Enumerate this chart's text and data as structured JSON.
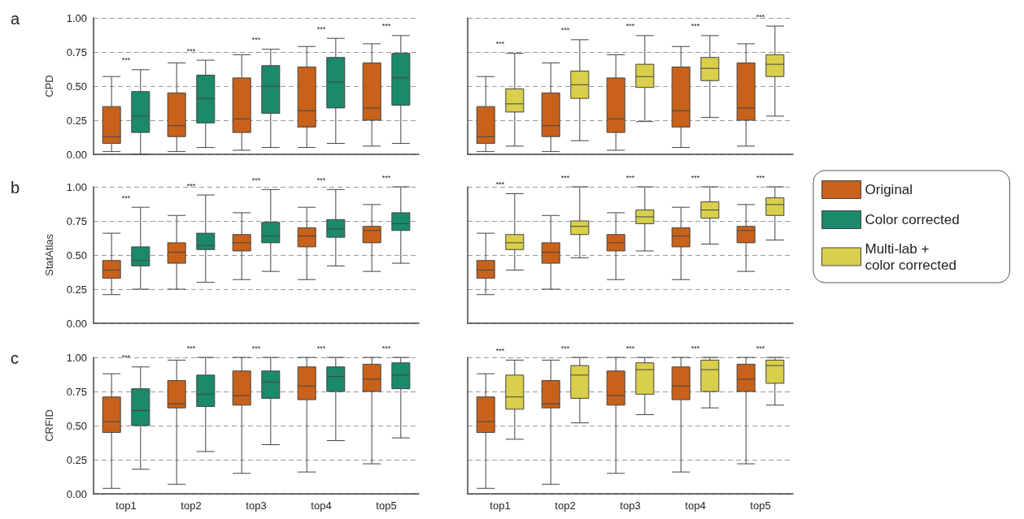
{
  "chart_data": [
    {
      "type": "box",
      "title": "a",
      "ylabel": "CPD",
      "categories": [
        "top1",
        "top2",
        "top3",
        "top4",
        "top5"
      ],
      "ylim": [
        0,
        1
      ],
      "yticks": [
        {
          "value": 0,
          "label": "0.00"
        },
        {
          "value": 0.25,
          "label": "0.25"
        },
        {
          "value": 0.5,
          "label": "0.50"
        },
        {
          "value": 0.75,
          "label": "0.75"
        },
        {
          "value": 1,
          "label": "1.00"
        }
      ],
      "grid": "y",
      "legend": "right",
      "tick_labels": "y",
      "series": [
        {
          "name": "Original",
          "color": "#c8621a",
          "boxes": [
            {
              "low": 0.02,
              "q1": 0.08,
              "median": 0.13,
              "q3": 0.35,
              "high": 0.57
            },
            {
              "low": 0.02,
              "q1": 0.13,
              "median": 0.21,
              "q3": 0.45,
              "high": 0.67
            },
            {
              "low": 0.03,
              "q1": 0.16,
              "median": 0.26,
              "q3": 0.56,
              "high": 0.73
            },
            {
              "low": 0.05,
              "q1": 0.2,
              "median": 0.32,
              "q3": 0.64,
              "high": 0.79
            },
            {
              "low": 0.06,
              "q1": 0.25,
              "median": 0.34,
              "q3": 0.67,
              "high": 0.81
            }
          ]
        },
        {
          "name": "Color corrected",
          "color": "#1a8a6a",
          "boxes": [
            {
              "low": 0,
              "q1": 0.16,
              "median": 0.28,
              "q3": 0.46,
              "high": 0.62
            },
            {
              "low": 0.05,
              "q1": 0.23,
              "median": 0.41,
              "q3": 0.58,
              "high": 0.69
            },
            {
              "low": 0.05,
              "q1": 0.3,
              "median": 0.5,
              "q3": 0.65,
              "high": 0.77
            },
            {
              "low": 0.08,
              "q1": 0.34,
              "median": 0.53,
              "q3": 0.71,
              "high": 0.85
            },
            {
              "low": 0.08,
              "q1": 0.36,
              "median": 0.56,
              "q3": 0.74,
              "high": 0.87
            }
          ]
        }
      ],
      "annotations": [
        "***",
        "***",
        "***",
        "***",
        "***"
      ]
    },
    {
      "type": "box",
      "categories": [
        "top1",
        "top2",
        "top3",
        "top4",
        "top5"
      ],
      "ylim": [
        0,
        1
      ],
      "yticks": [
        {
          "value": 0,
          "label": "0.00"
        },
        {
          "value": 0.25,
          "label": "0.25"
        },
        {
          "value": 0.5,
          "label": "0.50"
        },
        {
          "value": 0.75,
          "label": "0.75"
        },
        {
          "value": 1,
          "label": "1.00"
        }
      ],
      "grid": "y",
      "legend": "right",
      "tick_labels": false,
      "series": [
        {
          "color": "#c8621a",
          "boxes": [
            {
              "low": 0.02,
              "q1": 0.08,
              "median": 0.13,
              "q3": 0.35,
              "high": 0.57
            },
            {
              "low": 0.02,
              "q1": 0.13,
              "median": 0.21,
              "q3": 0.45,
              "high": 0.67
            },
            {
              "low": 0.03,
              "q1": 0.16,
              "median": 0.26,
              "q3": 0.56,
              "high": 0.73
            },
            {
              "low": 0.05,
              "q1": 0.2,
              "median": 0.32,
              "q3": 0.64,
              "high": 0.79
            },
            {
              "low": 0.06,
              "q1": 0.25,
              "median": 0.34,
              "q3": 0.67,
              "high": 0.81
            }
          ]
        },
        {
          "name": "Multi-lab + color corrected",
          "color": "#d9cf4a",
          "boxes": [
            {
              "low": 0.06,
              "q1": 0.31,
              "median": 0.37,
              "q3": 0.48,
              "high": 0.74
            },
            {
              "low": 0.1,
              "q1": 0.41,
              "median": 0.51,
              "q3": 0.61,
              "high": 0.84
            },
            {
              "low": 0.24,
              "q1": 0.49,
              "median": 0.57,
              "q3": 0.66,
              "high": 0.87
            },
            {
              "low": 0.27,
              "q1": 0.54,
              "median": 0.63,
              "q3": 0.71,
              "high": 0.87
            },
            {
              "low": 0.28,
              "q1": 0.57,
              "median": 0.66,
              "q3": 0.73,
              "high": 0.94
            }
          ]
        }
      ],
      "annotations": [
        "***",
        "***",
        "***",
        "***",
        "***"
      ]
    },
    {
      "type": "box",
      "title": "b",
      "ylabel": "StatAtlas",
      "categories": [
        "top1",
        "top2",
        "top3",
        "top4",
        "top5"
      ],
      "ylim": [
        0,
        1
      ],
      "yticks": [
        {
          "value": 0,
          "label": "0.00"
        },
        {
          "value": 0.25,
          "label": "0.25"
        },
        {
          "value": 0.5,
          "label": "0.50"
        },
        {
          "value": 0.75,
          "label": "0.75"
        },
        {
          "value": 1,
          "label": "1.00"
        }
      ],
      "grid": "y",
      "tick_labels": "y",
      "series": [
        {
          "color": "#c8621a",
          "boxes": [
            {
              "low": 0.21,
              "q1": 0.33,
              "median": 0.39,
              "q3": 0.46,
              "high": 0.66
            },
            {
              "low": 0.25,
              "q1": 0.44,
              "median": 0.52,
              "q3": 0.59,
              "high": 0.79
            },
            {
              "low": 0.32,
              "q1": 0.53,
              "median": 0.59,
              "q3": 0.65,
              "high": 0.81
            },
            {
              "low": 0.32,
              "q1": 0.56,
              "median": 0.64,
              "q3": 0.7,
              "high": 0.85
            },
            {
              "low": 0.38,
              "q1": 0.59,
              "median": 0.68,
              "q3": 0.71,
              "high": 0.87
            }
          ]
        },
        {
          "color": "#1a8a6a",
          "boxes": [
            {
              "low": 0.25,
              "q1": 0.42,
              "median": 0.46,
              "q3": 0.56,
              "high": 0.85
            },
            {
              "low": 0.3,
              "q1": 0.54,
              "median": 0.57,
              "q3": 0.66,
              "high": 0.94
            },
            {
              "low": 0.38,
              "q1": 0.59,
              "median": 0.64,
              "q3": 0.74,
              "high": 0.98
            },
            {
              "low": 0.42,
              "q1": 0.63,
              "median": 0.69,
              "q3": 0.76,
              "high": 0.98
            },
            {
              "low": 0.44,
              "q1": 0.68,
              "median": 0.73,
              "q3": 0.81,
              "high": 1
            }
          ]
        }
      ],
      "annotations": [
        "***",
        "***",
        "***",
        "***",
        "***"
      ]
    },
    {
      "type": "box",
      "categories": [
        "top1",
        "top2",
        "top3",
        "top4",
        "top5"
      ],
      "ylim": [
        0,
        1
      ],
      "yticks": [
        {
          "value": 0,
          "label": "0.00"
        },
        {
          "value": 0.25,
          "label": "0.25"
        },
        {
          "value": 0.5,
          "label": "0.50"
        },
        {
          "value": 0.75,
          "label": "0.75"
        },
        {
          "value": 1,
          "label": "1.00"
        }
      ],
      "grid": "y",
      "tick_labels": false,
      "series": [
        {
          "color": "#c8621a",
          "boxes": [
            {
              "low": 0.21,
              "q1": 0.33,
              "median": 0.39,
              "q3": 0.46,
              "high": 0.66
            },
            {
              "low": 0.25,
              "q1": 0.44,
              "median": 0.52,
              "q3": 0.59,
              "high": 0.79
            },
            {
              "low": 0.32,
              "q1": 0.53,
              "median": 0.59,
              "q3": 0.65,
              "high": 0.81
            },
            {
              "low": 0.32,
              "q1": 0.56,
              "median": 0.64,
              "q3": 0.7,
              "high": 0.85
            },
            {
              "low": 0.38,
              "q1": 0.59,
              "median": 0.68,
              "q3": 0.71,
              "high": 0.87
            }
          ]
        },
        {
          "color": "#d9cf4a",
          "boxes": [
            {
              "low": 0.39,
              "q1": 0.54,
              "median": 0.59,
              "q3": 0.65,
              "high": 0.95
            },
            {
              "low": 0.48,
              "q1": 0.65,
              "median": 0.71,
              "q3": 0.75,
              "high": 1
            },
            {
              "low": 0.53,
              "q1": 0.73,
              "median": 0.78,
              "q3": 0.83,
              "high": 1
            },
            {
              "low": 0.58,
              "q1": 0.77,
              "median": 0.83,
              "q3": 0.89,
              "high": 1
            },
            {
              "low": 0.61,
              "q1": 0.79,
              "median": 0.87,
              "q3": 0.92,
              "high": 1
            }
          ]
        }
      ],
      "annotations": [
        "***",
        "***",
        "***",
        "***",
        "***"
      ]
    },
    {
      "type": "box",
      "title": "c",
      "ylabel": "CRFID",
      "categories": [
        "top1",
        "top2",
        "top3",
        "top4",
        "top5"
      ],
      "ylim": [
        0,
        1
      ],
      "yticks": [
        {
          "value": 0,
          "label": "0.00"
        },
        {
          "value": 0.25,
          "label": "0.25"
        },
        {
          "value": 0.5,
          "label": "0.50"
        },
        {
          "value": 0.75,
          "label": "0.75"
        },
        {
          "value": 1,
          "label": "1.00"
        }
      ],
      "grid": "y",
      "series": [
        {
          "color": "#c8621a",
          "boxes": [
            {
              "low": 0.04,
              "q1": 0.45,
              "median": 0.53,
              "q3": 0.71,
              "high": 0.88
            },
            {
              "low": 0.07,
              "q1": 0.63,
              "median": 0.66,
              "q3": 0.83,
              "high": 0.98
            },
            {
              "low": 0.15,
              "q1": 0.65,
              "median": 0.72,
              "q3": 0.9,
              "high": 1
            },
            {
              "low": 0.16,
              "q1": 0.69,
              "median": 0.79,
              "q3": 0.93,
              "high": 1
            },
            {
              "low": 0.22,
              "q1": 0.75,
              "median": 0.84,
              "q3": 0.95,
              "high": 1
            }
          ]
        },
        {
          "color": "#1a8a6a",
          "boxes": [
            {
              "low": 0.18,
              "q1": 0.5,
              "median": 0.61,
              "q3": 0.77,
              "high": 0.93
            },
            {
              "low": 0.31,
              "q1": 0.64,
              "median": 0.73,
              "q3": 0.87,
              "high": 1
            },
            {
              "low": 0.36,
              "q1": 0.7,
              "median": 0.82,
              "q3": 0.9,
              "high": 1
            },
            {
              "low": 0.39,
              "q1": 0.75,
              "median": 0.86,
              "q3": 0.93,
              "high": 1
            },
            {
              "low": 0.41,
              "q1": 0.77,
              "median": 0.87,
              "q3": 0.96,
              "high": 1
            }
          ]
        }
      ],
      "annotations": [
        "***",
        "***",
        "***",
        "***",
        "***"
      ]
    },
    {
      "type": "box",
      "categories": [
        "top1",
        "top2",
        "top3",
        "top4",
        "top5"
      ],
      "ylim": [
        0,
        1
      ],
      "yticks": [
        {
          "value": 0,
          "label": "0.00"
        },
        {
          "value": 0.25,
          "label": "0.25"
        },
        {
          "value": 0.5,
          "label": "0.50"
        },
        {
          "value": 0.75,
          "label": "0.75"
        },
        {
          "value": 1,
          "label": "1.00"
        }
      ],
      "grid": "y",
      "tick_labels": "x",
      "series": [
        {
          "color": "#c8621a",
          "boxes": [
            {
              "low": 0.04,
              "q1": 0.45,
              "median": 0.53,
              "q3": 0.71,
              "high": 0.88
            },
            {
              "low": 0.07,
              "q1": 0.63,
              "median": 0.66,
              "q3": 0.83,
              "high": 0.98
            },
            {
              "low": 0.15,
              "q1": 0.65,
              "median": 0.72,
              "q3": 0.9,
              "high": 1
            },
            {
              "low": 0.16,
              "q1": 0.69,
              "median": 0.79,
              "q3": 0.93,
              "high": 1
            },
            {
              "low": 0.22,
              "q1": 0.75,
              "median": 0.84,
              "q3": 0.95,
              "high": 1
            }
          ]
        },
        {
          "color": "#d9cf4a",
          "boxes": [
            {
              "low": 0.4,
              "q1": 0.62,
              "median": 0.71,
              "q3": 0.87,
              "high": 0.98
            },
            {
              "low": 0.52,
              "q1": 0.7,
              "median": 0.87,
              "q3": 0.94,
              "high": 1
            },
            {
              "low": 0.58,
              "q1": 0.73,
              "median": 0.91,
              "q3": 0.96,
              "high": 1
            },
            {
              "low": 0.63,
              "q1": 0.75,
              "median": 0.91,
              "q3": 0.98,
              "high": 1
            },
            {
              "low": 0.65,
              "q1": 0.81,
              "median": 0.94,
              "q3": 0.98,
              "high": 1
            }
          ]
        }
      ],
      "annotations": [
        "***",
        "***",
        "***",
        "***",
        "***"
      ]
    }
  ]
}
